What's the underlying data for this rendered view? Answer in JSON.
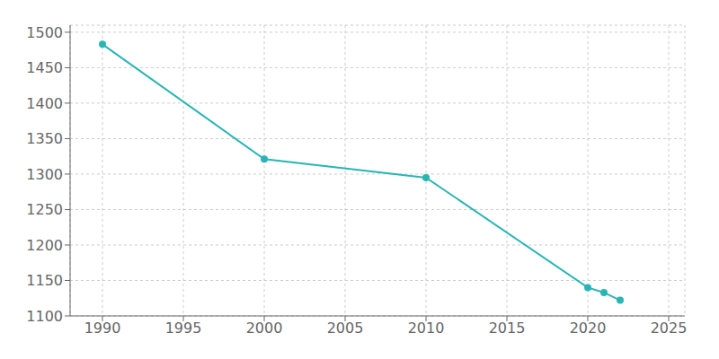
{
  "chart_data": {
    "type": "line",
    "x": [
      1990,
      2000,
      2010,
      2020,
      2021,
      2022
    ],
    "values": [
      1483,
      1321,
      1295,
      1140,
      1133,
      1122
    ],
    "color": "#2ab5b5",
    "xlim": [
      1988,
      2026
    ],
    "ylim": [
      1100,
      1510
    ],
    "xticks": [
      1990,
      1995,
      2000,
      2005,
      2010,
      2015,
      2020,
      2025
    ],
    "yticks": [
      1100,
      1150,
      1200,
      1250,
      1300,
      1350,
      1400,
      1450,
      1500
    ],
    "grid": true,
    "marker": "circle"
  }
}
